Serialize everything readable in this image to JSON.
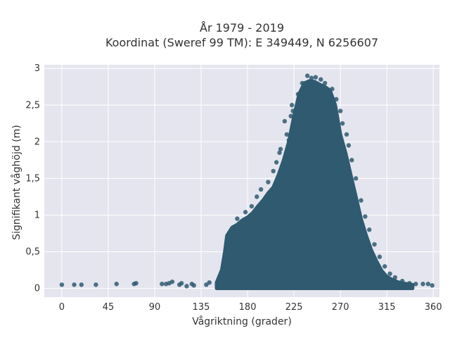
{
  "chart_data": {
    "type": "scatter",
    "title": "År 1979 - 2019",
    "subtitle": "Koordinat (Sweref 99 TM): E 349449, N 6256607",
    "xlabel": "Vågriktning (grader)",
    "ylabel": "Signifikant våghöjd (m)",
    "xlim": [
      -17,
      366
    ],
    "ylim": [
      -0.12,
      3.05
    ],
    "xticks": [
      0,
      45,
      90,
      135,
      180,
      225,
      270,
      315,
      360
    ],
    "xtick_labels": [
      "0",
      "45",
      "90",
      "135",
      "180",
      "225",
      "270",
      "315",
      "360"
    ],
    "yticks": [
      0,
      0.5,
      1,
      1.5,
      2,
      2.5,
      3
    ],
    "ytick_labels": [
      "0",
      "0,5",
      "1",
      "1,5",
      "2",
      "2,5",
      "3"
    ],
    "grid": true,
    "marker_color": "#2f5a70",
    "background_color": "#e5e5ef",
    "envelope": {
      "x": [
        150,
        155,
        158,
        160,
        165,
        170,
        175,
        180,
        185,
        190,
        195,
        200,
        205,
        210,
        215,
        220,
        225,
        230,
        235,
        240,
        245,
        250,
        255,
        260,
        265,
        270,
        275,
        280,
        285,
        290,
        295,
        300,
        305,
        310,
        315,
        320,
        325,
        330,
        335,
        340
      ],
      "y": [
        0.08,
        0.25,
        0.5,
        0.72,
        0.83,
        0.87,
        0.93,
        0.97,
        1.03,
        1.12,
        1.2,
        1.3,
        1.38,
        1.55,
        1.75,
        2.0,
        2.35,
        2.65,
        2.8,
        2.83,
        2.82,
        2.78,
        2.75,
        2.7,
        2.5,
        2.1,
        1.85,
        1.55,
        1.25,
        0.95,
        0.72,
        0.52,
        0.37,
        0.24,
        0.16,
        0.12,
        0.09,
        0.07,
        0.06,
        0.05
      ]
    },
    "outliers": [
      {
        "x": 0,
        "y": 0.05
      },
      {
        "x": 12,
        "y": 0.05
      },
      {
        "x": 19,
        "y": 0.05
      },
      {
        "x": 33,
        "y": 0.05
      },
      {
        "x": 53,
        "y": 0.06
      },
      {
        "x": 70,
        "y": 0.06
      },
      {
        "x": 72,
        "y": 0.07
      },
      {
        "x": 97,
        "y": 0.06
      },
      {
        "x": 101,
        "y": 0.06
      },
      {
        "x": 104,
        "y": 0.07
      },
      {
        "x": 107,
        "y": 0.09
      },
      {
        "x": 114,
        "y": 0.05
      },
      {
        "x": 116,
        "y": 0.07
      },
      {
        "x": 121,
        "y": 0.03
      },
      {
        "x": 126,
        "y": 0.06
      },
      {
        "x": 128,
        "y": 0.04
      },
      {
        "x": 140,
        "y": 0.05
      },
      {
        "x": 143,
        "y": 0.08
      },
      {
        "x": 170,
        "y": 0.95
      },
      {
        "x": 178,
        "y": 1.04
      },
      {
        "x": 184,
        "y": 1.12
      },
      {
        "x": 189,
        "y": 1.25
      },
      {
        "x": 193,
        "y": 1.35
      },
      {
        "x": 200,
        "y": 1.45
      },
      {
        "x": 205,
        "y": 1.6
      },
      {
        "x": 208,
        "y": 1.72
      },
      {
        "x": 211,
        "y": 1.85
      },
      {
        "x": 212,
        "y": 1.9
      },
      {
        "x": 216,
        "y": 2.28
      },
      {
        "x": 218,
        "y": 2.1
      },
      {
        "x": 220,
        "y": 2.02
      },
      {
        "x": 222,
        "y": 2.35
      },
      {
        "x": 223,
        "y": 2.5
      },
      {
        "x": 224,
        "y": 2.42
      },
      {
        "x": 229,
        "y": 2.65
      },
      {
        "x": 233,
        "y": 2.8
      },
      {
        "x": 238,
        "y": 2.9
      },
      {
        "x": 242,
        "y": 2.87
      },
      {
        "x": 246,
        "y": 2.88
      },
      {
        "x": 251,
        "y": 2.85
      },
      {
        "x": 255,
        "y": 2.8
      },
      {
        "x": 262,
        "y": 2.72
      },
      {
        "x": 266,
        "y": 2.58
      },
      {
        "x": 270,
        "y": 2.42
      },
      {
        "x": 272,
        "y": 2.25
      },
      {
        "x": 276,
        "y": 2.1
      },
      {
        "x": 278,
        "y": 1.95
      },
      {
        "x": 281,
        "y": 1.75
      },
      {
        "x": 285,
        "y": 1.5
      },
      {
        "x": 290,
        "y": 1.2
      },
      {
        "x": 294,
        "y": 0.98
      },
      {
        "x": 298,
        "y": 0.8
      },
      {
        "x": 303,
        "y": 0.6
      },
      {
        "x": 308,
        "y": 0.43
      },
      {
        "x": 313,
        "y": 0.3
      },
      {
        "x": 318,
        "y": 0.2
      },
      {
        "x": 323,
        "y": 0.15
      },
      {
        "x": 330,
        "y": 0.1
      },
      {
        "x": 337,
        "y": 0.07
      },
      {
        "x": 343,
        "y": 0.06
      },
      {
        "x": 350,
        "y": 0.06
      },
      {
        "x": 355,
        "y": 0.06
      },
      {
        "x": 359,
        "y": 0.04
      }
    ]
  }
}
